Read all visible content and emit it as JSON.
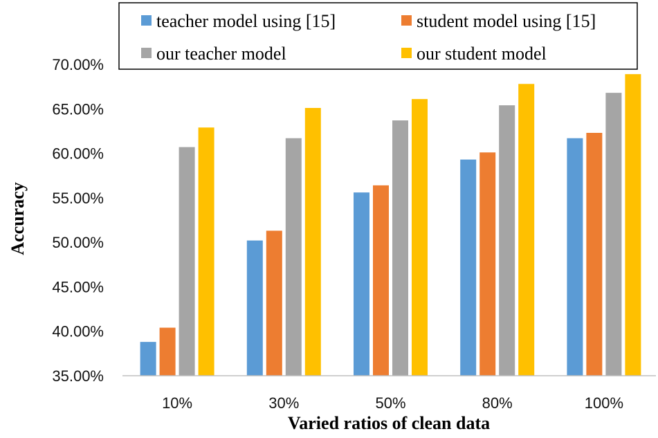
{
  "chart_data": {
    "type": "bar",
    "categories": [
      "10%",
      "30%",
      "50%",
      "80%",
      "100%"
    ],
    "series": [
      {
        "name": "teacher model using [15]",
        "color": "#5b9bd5",
        "values": [
          38.8,
          50.2,
          55.6,
          59.3,
          61.7
        ]
      },
      {
        "name": "student model using [15]",
        "color": "#ed7d31",
        "values": [
          40.4,
          51.3,
          56.4,
          60.1,
          62.3
        ]
      },
      {
        "name": "our teacher model",
        "color": "#a5a5a5",
        "values": [
          60.7,
          61.7,
          63.7,
          65.4,
          66.8
        ]
      },
      {
        "name": "our student model",
        "color": "#ffc000",
        "values": [
          62.9,
          65.1,
          66.1,
          67.8,
          68.9
        ]
      }
    ],
    "y_ticks": [
      "35.00%",
      "40.00%",
      "45.00%",
      "50.00%",
      "55.00%",
      "60.00%",
      "65.00%",
      "70.00%"
    ],
    "xlabel": "Varied ratios of clean data",
    "ylabel": "Accuracy",
    "ylim": [
      35,
      70
    ],
    "legend_position": "top",
    "grid": false
  }
}
